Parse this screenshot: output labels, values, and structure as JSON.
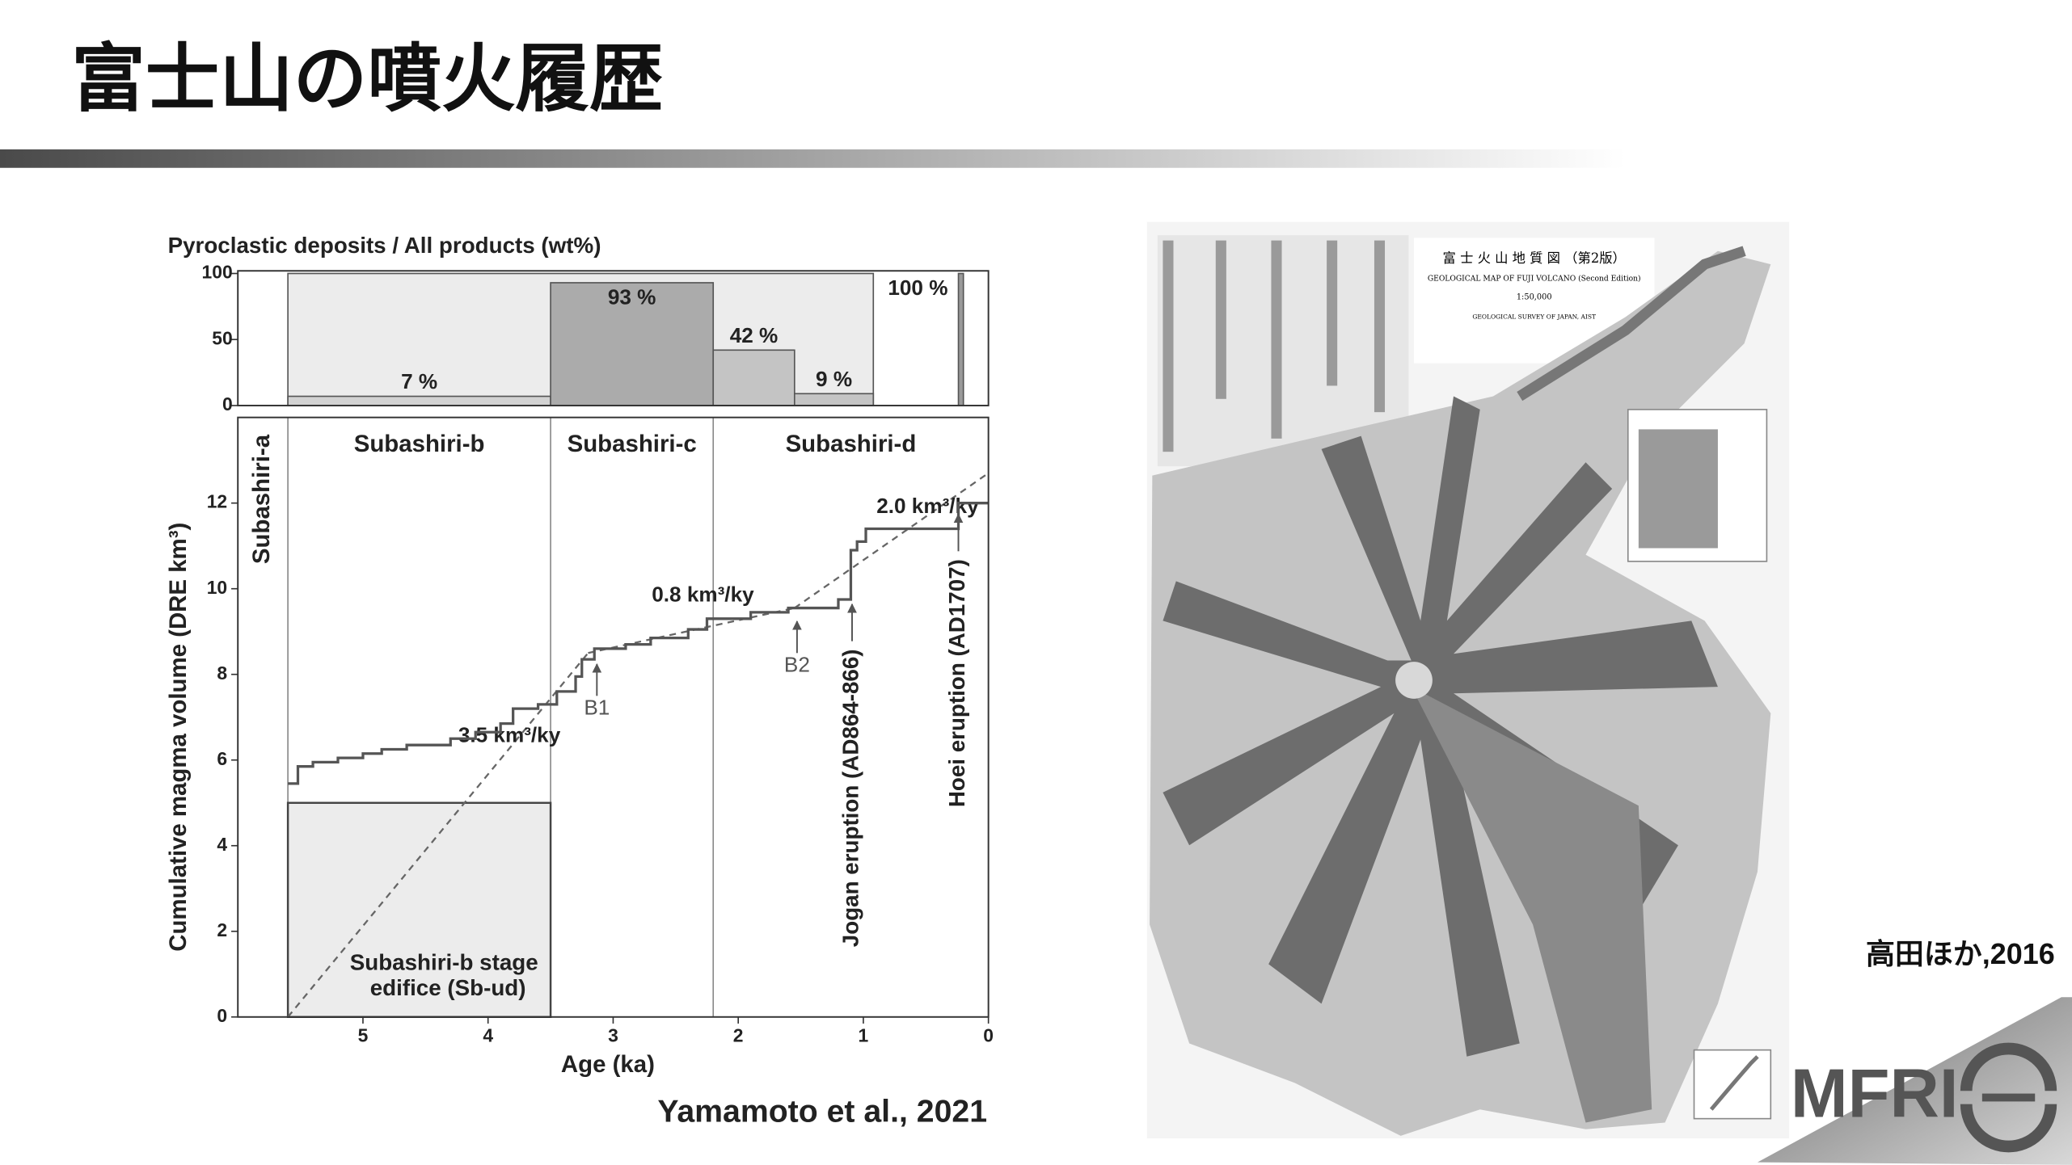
{
  "title": "富士山の噴火履歴",
  "chart_data": [
    {
      "type": "interval-bar",
      "title": "Pyroclastic deposits / All products (wt%)",
      "xlim": [
        6,
        0
      ],
      "ylim": [
        0,
        100
      ],
      "yticks": [
        0,
        50,
        100
      ],
      "background": {
        "x": [
          5.6,
          0.92
        ],
        "value": 100,
        "color": "#ececec"
      },
      "bars": [
        {
          "x": [
            5.6,
            3.5
          ],
          "value": 7,
          "value_label": "7 %",
          "color": "#d2d2d2"
        },
        {
          "x": [
            3.5,
            2.2
          ],
          "value": 93,
          "value_label": "93 %",
          "color": "#ababab"
        },
        {
          "x": [
            2.2,
            1.55
          ],
          "value": 42,
          "value_label": "42 %",
          "color": "#c4c4c4"
        },
        {
          "x": [
            1.55,
            0.92
          ],
          "value": 9,
          "value_label": "9 %",
          "color": "#c4c4c4"
        },
        {
          "x": [
            0.24,
            0.2
          ],
          "value": 100,
          "value_label": "100 %",
          "color": "#9a9a9a"
        }
      ]
    },
    {
      "type": "step-line",
      "xlabel": "Age (ka)",
      "ylabel": "Cumulative magma volume (DRE km³)",
      "xlim": [
        6,
        0
      ],
      "ylim": [
        0,
        14
      ],
      "xticks": [
        5,
        4,
        3,
        2,
        1,
        0
      ],
      "yticks": [
        0,
        2,
        4,
        6,
        8,
        10,
        12
      ],
      "color": "#555555",
      "x": [
        5.6,
        5.52,
        5.52,
        5.4,
        5.4,
        5.2,
        5.2,
        5.0,
        5.0,
        4.85,
        4.85,
        4.65,
        4.65,
        4.3,
        4.3,
        4.1,
        4.1,
        3.9,
        3.9,
        3.8,
        3.8,
        3.6,
        3.6,
        3.45,
        3.45,
        3.3,
        3.3,
        3.25,
        3.25,
        3.15,
        3.15,
        2.9,
        2.9,
        2.7,
        2.7,
        2.4,
        2.4,
        2.25,
        2.25,
        1.9,
        1.9,
        1.6,
        1.6,
        1.2,
        1.2,
        1.1,
        1.1,
        1.05,
        1.05,
        0.98,
        0.98,
        0.24,
        0.24,
        0
      ],
      "values": [
        5.45,
        5.45,
        5.85,
        5.85,
        5.95,
        5.95,
        6.05,
        6.05,
        6.15,
        6.15,
        6.25,
        6.25,
        6.35,
        6.35,
        6.5,
        6.5,
        6.65,
        6.65,
        6.85,
        6.85,
        7.2,
        7.2,
        7.3,
        7.3,
        7.6,
        7.6,
        7.95,
        7.95,
        8.35,
        8.35,
        8.6,
        8.6,
        8.7,
        8.7,
        8.85,
        8.85,
        9.05,
        9.05,
        9.3,
        9.3,
        9.45,
        9.45,
        9.55,
        9.55,
        9.75,
        9.75,
        10.9,
        10.9,
        11.1,
        11.1,
        11.4,
        11.4,
        12.0,
        12.0
      ],
      "edifice": {
        "x": [
          5.6,
          3.5
        ],
        "value": 5,
        "lines": [
          "Subashiri-b stage",
          "edifice (Sb-ud)"
        ],
        "color": "#ececec"
      },
      "rate_lines": [
        {
          "x": [
            5.6,
            3.2
          ],
          "values": [
            0,
            8.5
          ],
          "label": "3.5 km³/ky"
        },
        {
          "x": [
            3.2,
            1.55
          ],
          "values": [
            8.5,
            9.55
          ],
          "label": "0.8 km³/ky"
        },
        {
          "x": [
            1.55,
            0
          ],
          "values": [
            9.55,
            12.7
          ],
          "label": "2.0 km³/ky"
        }
      ],
      "stages": [
        {
          "x": [
            6,
            5.6
          ],
          "label": "Subashiri-a",
          "orientation": "vertical"
        },
        {
          "x": [
            5.6,
            3.5
          ],
          "label": "Subashiri-b",
          "orientation": "horizontal"
        },
        {
          "x": [
            3.5,
            2.2
          ],
          "label": "Subashiri-c",
          "orientation": "horizontal"
        },
        {
          "x": [
            2.2,
            0
          ],
          "label": "Subashiri-d",
          "orientation": "horizontal"
        }
      ],
      "events": [
        {
          "x": 3.13,
          "value": 8.3,
          "label": "B1",
          "orientation": "horizontal"
        },
        {
          "x": 1.53,
          "value": 9.3,
          "label": "B2",
          "orientation": "horizontal"
        },
        {
          "x": 1.09,
          "value": 9.7,
          "label": "Jogan eruption (AD864-866)",
          "orientation": "vertical"
        },
        {
          "x": 0.24,
          "value": 11.8,
          "label": "Hoei eruption (AD1707)",
          "orientation": "vertical"
        }
      ],
      "source": "Yamamoto et al., 2021"
    }
  ],
  "map": {
    "title": "富 士 火 山 地 質 図 （第2版）",
    "subtitle": "GEOLOGICAL MAP OF FUJI VOLCANO (Second Edition)",
    "scale": "1:50,000",
    "publisher": "GEOLOGICAL SURVEY OF JAPAN, AIST",
    "credit": "高田ほか,2016"
  },
  "logo": "MFRI"
}
